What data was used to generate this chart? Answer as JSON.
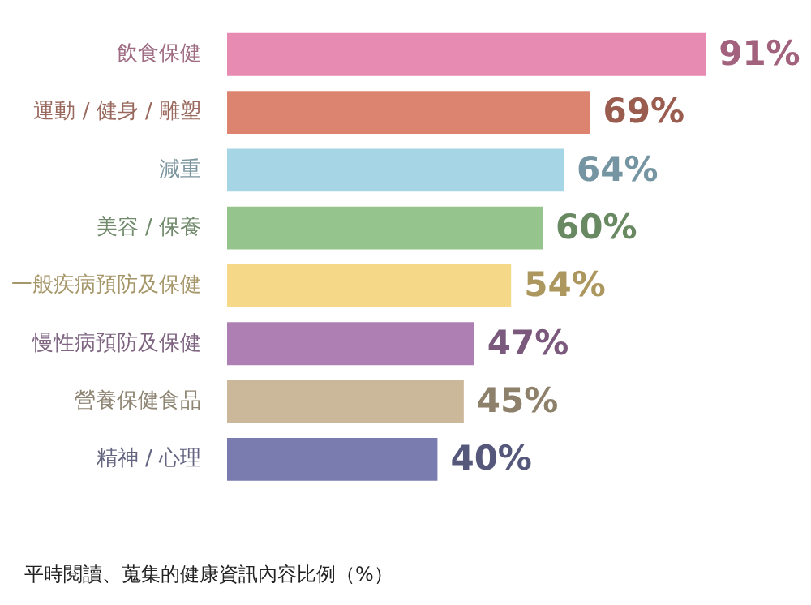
{
  "chart_data": {
    "type": "bar",
    "orientation": "horizontal",
    "categories": [
      "飲食保健",
      "運動 / 健身 / 雕塑",
      "減重",
      "美容 / 保養",
      "一般疾病預防及保健",
      "慢性病預防及保健",
      "營養保健食品",
      "精神 / 心理"
    ],
    "values": [
      91,
      69,
      64,
      60,
      54,
      47,
      45,
      40
    ],
    "colors": [
      "#e88bb3",
      "#dc8470",
      "#a6d5e6",
      "#96c48d",
      "#f5d988",
      "#ae7fb3",
      "#cbb89a",
      "#7a7cb0"
    ],
    "value_labels": [
      "91%",
      "69%",
      "64%",
      "60%",
      "54%",
      "47%",
      "45%",
      "40%"
    ],
    "annotations": [
      "平時閱讀、蒐集的健康資訊內容比例（%）"
    ],
    "legend": false
  }
}
